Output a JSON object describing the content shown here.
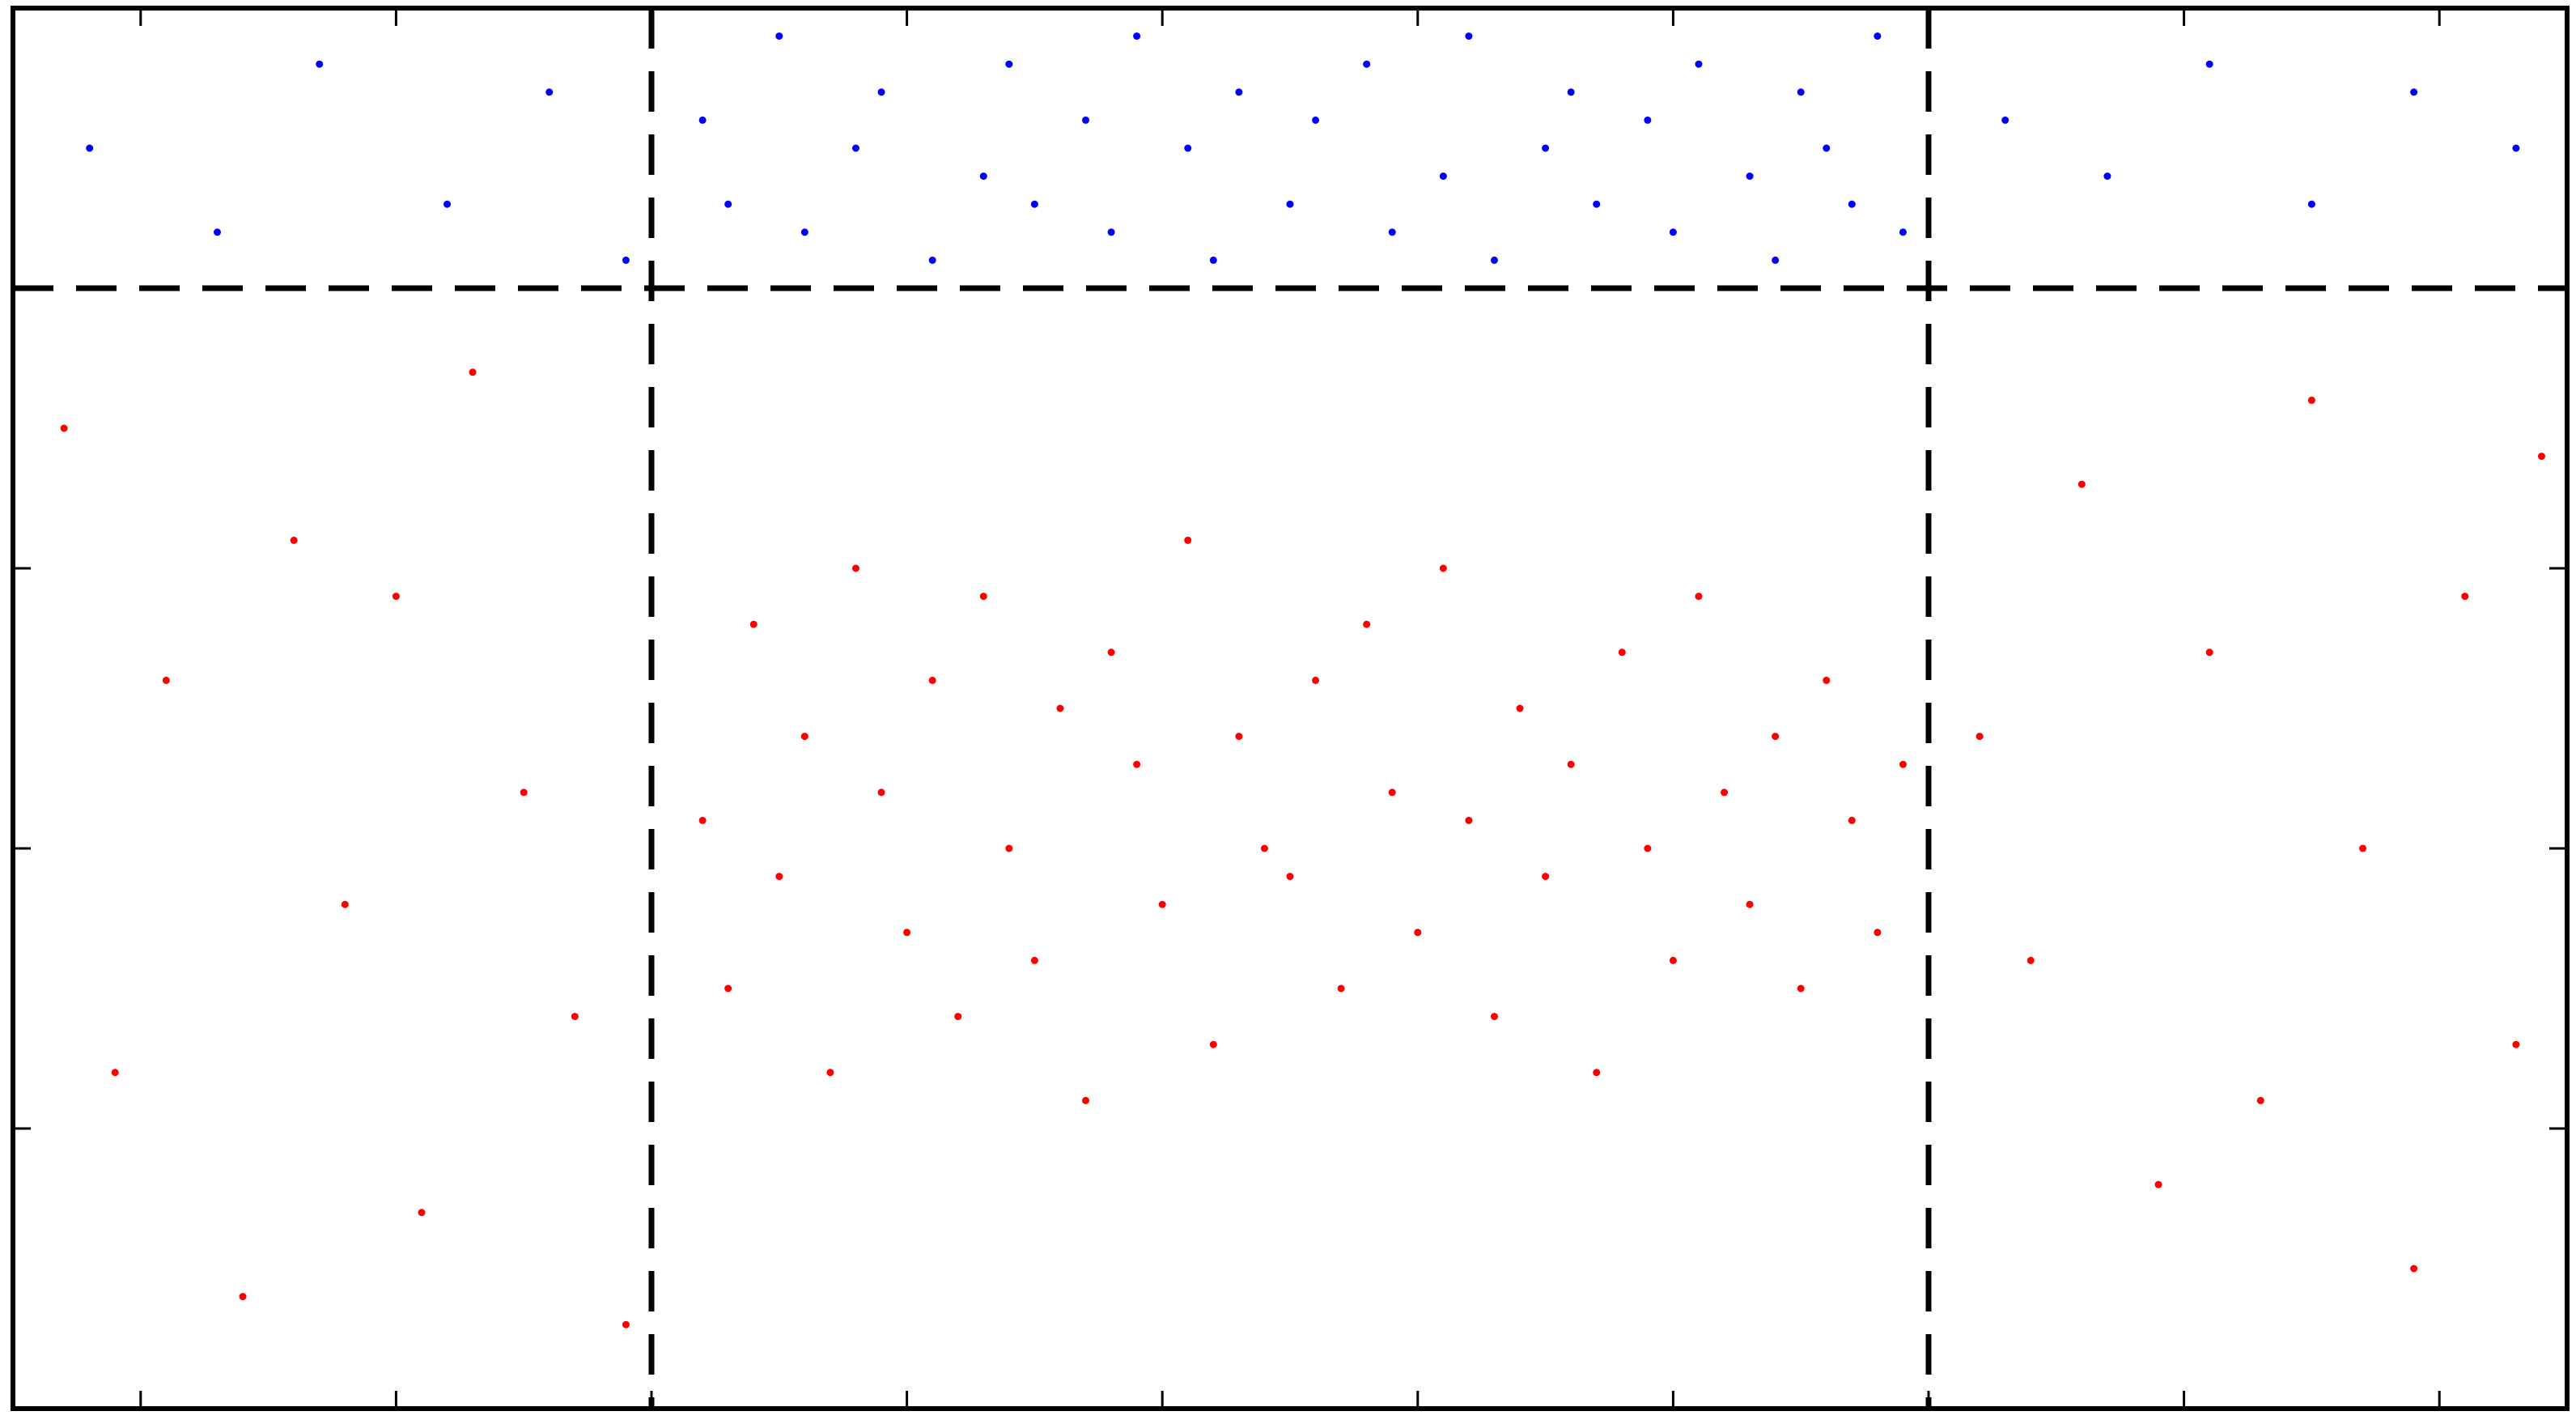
{
  "chart_data": {
    "type": "scatter",
    "xlim": [
      0,
      100
    ],
    "xticks": [
      5,
      15,
      25,
      35,
      45,
      55,
      65,
      75,
      85,
      95
    ],
    "ylim": [
      0,
      5
    ],
    "yticks": [
      1,
      2,
      3,
      4
    ],
    "vlines": [
      25,
      75
    ],
    "hline": 4,
    "series": [
      {
        "color": "#0000ff",
        "x": [
          3,
          8,
          12,
          17,
          21,
          24,
          27,
          28,
          30,
          31,
          33,
          34,
          36,
          38,
          39,
          40,
          42,
          43,
          44,
          46,
          47,
          48,
          50,
          51,
          53,
          54,
          56,
          57,
          58,
          60,
          61,
          62,
          64,
          65,
          66,
          68,
          69,
          70,
          71,
          72,
          73,
          74,
          78,
          82,
          86,
          90,
          94,
          98
        ],
        "y": [
          4.5,
          4.2,
          4.8,
          4.3,
          4.7,
          4.1,
          4.6,
          4.3,
          4.9,
          4.2,
          4.5,
          4.7,
          4.1,
          4.4,
          4.8,
          4.3,
          4.6,
          4.2,
          4.9,
          4.5,
          4.1,
          4.7,
          4.3,
          4.6,
          4.8,
          4.2,
          4.4,
          4.9,
          4.1,
          4.5,
          4.7,
          4.3,
          4.6,
          4.2,
          4.8,
          4.4,
          4.1,
          4.7,
          4.5,
          4.3,
          4.9,
          4.2,
          4.6,
          4.4,
          4.8,
          4.3,
          4.7,
          4.5
        ]
      },
      {
        "color": "#ff0000",
        "x": [
          2,
          4,
          6,
          9,
          11,
          13,
          15,
          16,
          18,
          20,
          22,
          24,
          77,
          79,
          81,
          84,
          86,
          88,
          90,
          92,
          94,
          96,
          98,
          99,
          27,
          28,
          29,
          30,
          31,
          32,
          33,
          34,
          35,
          36,
          37,
          38,
          39,
          40,
          41,
          42,
          43,
          44,
          45,
          46,
          47,
          48,
          49,
          50,
          51,
          52,
          53,
          54,
          55,
          56,
          57,
          58,
          59,
          60,
          61,
          62,
          63,
          64,
          65,
          66,
          67,
          68,
          69,
          70,
          71,
          72,
          73,
          74
        ],
        "y": [
          3.5,
          1.2,
          2.6,
          0.4,
          3.1,
          1.8,
          2.9,
          0.7,
          3.7,
          2.2,
          1.4,
          0.3,
          2.4,
          1.6,
          3.3,
          0.8,
          2.7,
          1.1,
          3.6,
          2.0,
          0.5,
          2.9,
          1.3,
          3.4,
          2.1,
          1.5,
          2.8,
          1.9,
          2.4,
          1.2,
          3.0,
          2.2,
          1.7,
          2.6,
          1.4,
          2.9,
          2.0,
          1.6,
          2.5,
          1.1,
          2.7,
          2.3,
          1.8,
          3.1,
          1.3,
          2.4,
          2.0,
          1.9,
          2.6,
          1.5,
          2.8,
          2.2,
          1.7,
          3.0,
          2.1,
          1.4,
          2.5,
          1.9,
          2.3,
          1.2,
          2.7,
          2.0,
          1.6,
          2.9,
          2.2,
          1.8,
          2.4,
          1.5,
          2.6,
          2.1,
          1.7,
          2.3
        ]
      }
    ]
  }
}
